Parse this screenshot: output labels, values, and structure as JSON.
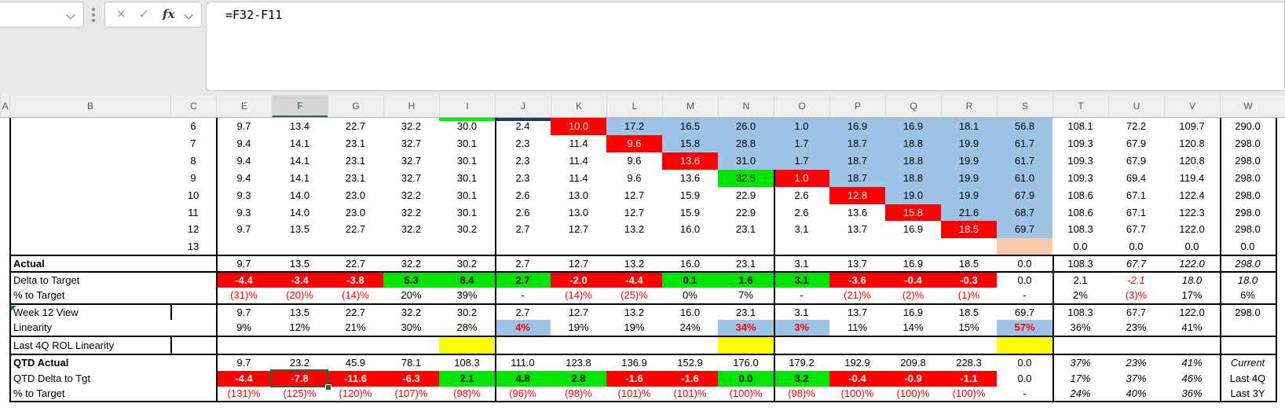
{
  "formula_bar": {
    "name_box_value": "",
    "formula": "=F32-F11",
    "buttons": {
      "cancel": "×",
      "confirm": "✓",
      "insert_function": "fx"
    }
  },
  "columns": {
    "letters": [
      "A",
      "B",
      "C",
      "E",
      "F",
      "G",
      "H",
      "I",
      "J",
      "K",
      "L",
      "M",
      "N",
      "O",
      "P",
      "Q",
      "R",
      "S",
      "T",
      "U",
      "V",
      "W"
    ],
    "selected": "F"
  },
  "palette": {
    "red": "#FE0000",
    "green": "#00E402",
    "blue": "#9DC3E6",
    "yellow": "#FFFF00",
    "peach": "#F8CBAD",
    "strip_green": "#00F300",
    "strip_navy": "#1F3864",
    "selection_border": "#1A6B42",
    "negative_text": "#FE0000"
  },
  "strips": [
    {
      "col": "I",
      "color": "strip_green"
    },
    {
      "col": "J",
      "color": "strip_navy"
    }
  ],
  "selection": {
    "column": "F",
    "row_id": "qtd_delta"
  },
  "rows": [
    {
      "id": "wk6",
      "week": "6",
      "cells": [
        "9.7",
        "13.4",
        "22.7",
        "32.2",
        "30.0",
        "2.4",
        [
          "10.0",
          "red",
          "w"
        ],
        [
          "17.2",
          "blue"
        ],
        [
          "16.5",
          "blue"
        ],
        [
          "26.0",
          "blue"
        ],
        [
          "1.0",
          "blue"
        ],
        [
          "16.9",
          "blue"
        ],
        [
          "16.9",
          "blue"
        ],
        [
          "18.1",
          "blue"
        ],
        [
          "56.8",
          "blue"
        ],
        "108.1",
        "72.2",
        "109.7",
        "290.0"
      ]
    },
    {
      "id": "wk7",
      "week": "7",
      "cells": [
        "9.4",
        "14.1",
        "23.1",
        "32.7",
        "30.1",
        "2.3",
        "11.4",
        [
          "9.6",
          "red",
          "w"
        ],
        [
          "15.8",
          "blue"
        ],
        [
          "28.8",
          "blue"
        ],
        [
          "1.7",
          "blue"
        ],
        [
          "18.7",
          "blue"
        ],
        [
          "18.8",
          "blue"
        ],
        [
          "19.9",
          "blue"
        ],
        [
          "61.7",
          "blue"
        ],
        "109.3",
        "67.9",
        "120.8",
        "298.0"
      ]
    },
    {
      "id": "wk8",
      "week": "8",
      "cells": [
        "9.4",
        "14.1",
        "23.1",
        "32.7",
        "30.1",
        "2.3",
        "11.4",
        "9.6",
        [
          "13.6",
          "red",
          "w"
        ],
        [
          "31.0",
          "blue"
        ],
        [
          "1.7",
          "blue"
        ],
        [
          "18.7",
          "blue"
        ],
        [
          "18.8",
          "blue"
        ],
        [
          "19.9",
          "blue"
        ],
        [
          "61.7",
          "blue"
        ],
        "109.3",
        "67.9",
        "120.8",
        "298.0"
      ]
    },
    {
      "id": "wk9",
      "week": "9",
      "cells": [
        "9.4",
        "14.1",
        "23.1",
        "32.7",
        "30.1",
        "2.3",
        "11.4",
        "9.6",
        "13.6",
        [
          "32.5",
          "green"
        ],
        [
          "1.0",
          "red",
          "w"
        ],
        [
          "18.7",
          "blue"
        ],
        [
          "18.8",
          "blue"
        ],
        [
          "19.9",
          "blue"
        ],
        [
          "61.0",
          "blue"
        ],
        "109.3",
        "69.4",
        "119.4",
        "298.0"
      ]
    },
    {
      "id": "wk10",
      "week": "10",
      "cells": [
        "9.3",
        "14.0",
        "23.0",
        "32.2",
        "30.1",
        "2.6",
        "13.0",
        "12.7",
        "15.9",
        "22.9",
        "2.6",
        [
          "12.8",
          "red",
          "w"
        ],
        [
          "19.0",
          "blue"
        ],
        [
          "19.9",
          "blue"
        ],
        [
          "67.9",
          "blue"
        ],
        "108.6",
        "67.1",
        "122.4",
        "298.0"
      ]
    },
    {
      "id": "wk11",
      "week": "11",
      "cells": [
        "9.3",
        "14.0",
        "23.0",
        "32.2",
        "30.1",
        "2.6",
        "13.0",
        "12.7",
        "15.9",
        "22.9",
        "2.6",
        "13.6",
        [
          "15.8",
          "red",
          "w"
        ],
        [
          "21.6",
          "blue"
        ],
        [
          "68.7",
          "blue"
        ],
        "108.6",
        "67.1",
        "122.3",
        "298.0"
      ]
    },
    {
      "id": "wk12",
      "week": "12",
      "cells": [
        "9.7",
        "13.5",
        "22.7",
        "32.2",
        "30.2",
        "2.7",
        "12.7",
        "13.2",
        "16.0",
        "23.1",
        "3.1",
        "13.7",
        "16.9",
        [
          "18.5",
          "red",
          "w"
        ],
        [
          "69.7",
          "blue"
        ],
        "108.3",
        "67.7",
        "122.0",
        "298.0"
      ]
    },
    {
      "id": "wk13",
      "week": "13",
      "cells": [
        null,
        null,
        null,
        null,
        null,
        null,
        null,
        null,
        null,
        null,
        null,
        null,
        null,
        null,
        [
          "",
          "peach"
        ],
        "0.0",
        "0.0",
        "0.0",
        "0.0"
      ]
    },
    {
      "id": "actual",
      "label": "Actual",
      "label_bold": true,
      "cells": [
        "9.7",
        "13.5",
        "22.7",
        "32.2",
        "30.2",
        "2.7",
        "12.7",
        "13.2",
        "16.0",
        "23.1",
        "3.1",
        "13.7",
        "16.9",
        "18.5",
        "0.0",
        "108.3",
        [
          "67.7",
          "",
          "i"
        ],
        [
          "122.0",
          "",
          "i"
        ],
        [
          "298.0",
          "",
          "i"
        ]
      ]
    },
    {
      "id": "delta_to_target",
      "label": "Delta to Target",
      "cells": [
        [
          "-4.4",
          "red",
          "wb"
        ],
        [
          "-3.4",
          "red",
          "wb"
        ],
        [
          "-3.8",
          "red",
          "wb"
        ],
        [
          "5.3",
          "green",
          "b"
        ],
        [
          "8.4",
          "green",
          "b"
        ],
        [
          "2.7",
          "green",
          "b"
        ],
        [
          "-2.0",
          "red",
          "wb"
        ],
        [
          "-4.4",
          "red",
          "wb"
        ],
        [
          "0.1",
          "green",
          "b"
        ],
        [
          "1.6",
          "green",
          "b"
        ],
        [
          "3.1",
          "green",
          "b"
        ],
        [
          "-3.6",
          "red",
          "wb"
        ],
        [
          "-0.4",
          "red",
          "wb"
        ],
        [
          "-0.3",
          "red",
          "wb"
        ],
        "0.0",
        "2.1",
        [
          "-2.1",
          "",
          "ri"
        ],
        [
          "18.0",
          "",
          "i"
        ],
        [
          "18.0",
          "",
          "i"
        ]
      ]
    },
    {
      "id": "pct_to_target",
      "label": "% to Target",
      "cells": [
        [
          "(31)%",
          "",
          "r"
        ],
        [
          "(20)%",
          "",
          "r"
        ],
        [
          "(14)%",
          "",
          "r"
        ],
        "20%",
        "39%",
        "-",
        [
          "(14)%",
          "",
          "r"
        ],
        [
          "(25)%",
          "",
          "r"
        ],
        "0%",
        "7%",
        "-",
        [
          "(21)%",
          "",
          "r"
        ],
        [
          "(2)%",
          "",
          "r"
        ],
        [
          "(1)%",
          "",
          "r"
        ],
        "-",
        "2%",
        [
          "(3)%",
          "",
          "r"
        ],
        "17%",
        "6%"
      ]
    },
    {
      "id": "week12_view",
      "label": "Week 12 View",
      "note_indicator": true,
      "cells": [
        "9.7",
        "13.5",
        "22.7",
        "32.2",
        "30.2",
        "2.7",
        "12.7",
        "13.2",
        "16.0",
        "23.1",
        "3.1",
        "13.7",
        "16.9",
        "18.5",
        "69.7",
        "108.3",
        "67.7",
        "122.0",
        "298.0"
      ]
    },
    {
      "id": "linearity",
      "label": "Linearity",
      "cells": [
        "9%",
        "12%",
        "21%",
        "30%",
        "28%",
        [
          "4%",
          "blue",
          "rb"
        ],
        "19%",
        "19%",
        "24%",
        [
          "34%",
          "blue",
          "rb"
        ],
        [
          "3%",
          "blue",
          "rb"
        ],
        "11%",
        "14%",
        "15%",
        [
          "57%",
          "blue",
          "rb"
        ],
        "36%",
        "23%",
        "41%",
        null
      ]
    },
    {
      "id": "last4q_rol",
      "label": "Last 4Q ROL Linearity",
      "cells": [
        null,
        null,
        null,
        null,
        [
          "",
          "yellow"
        ],
        null,
        null,
        null,
        null,
        [
          "",
          "yellow"
        ],
        null,
        null,
        null,
        null,
        [
          "",
          "yellow"
        ],
        null,
        null,
        null,
        null
      ]
    },
    {
      "id": "qtd_actual",
      "label": "QTD Actual",
      "label_bold": true,
      "cells": [
        "9.7",
        "23.2",
        "45.9",
        "78.1",
        "108.3",
        "111.0",
        "123.8",
        "136.9",
        "152.9",
        "176.0",
        "179.2",
        "192.9",
        "209.8",
        "228.3",
        "0.0",
        [
          "37%",
          "",
          "i"
        ],
        [
          "23%",
          "",
          "i"
        ],
        [
          "41%",
          "",
          "i"
        ],
        [
          "Current",
          "",
          "i"
        ]
      ]
    },
    {
      "id": "qtd_delta",
      "label": "QTD Delta to Tgt",
      "cells": [
        [
          "-4.4",
          "red",
          "wb"
        ],
        [
          "-7.8",
          "red",
          "wb"
        ],
        [
          "-11.6",
          "red",
          "wb"
        ],
        [
          "-6.3",
          "red",
          "wb"
        ],
        [
          "2.1",
          "green",
          "b"
        ],
        [
          "4.8",
          "green",
          "b"
        ],
        [
          "2.8",
          "green",
          "b"
        ],
        [
          "-1.6",
          "red",
          "wb"
        ],
        [
          "-1.6",
          "red",
          "wb"
        ],
        [
          "0.0",
          "green",
          "b"
        ],
        [
          "3.2",
          "green",
          "b"
        ],
        [
          "-0.4",
          "red",
          "wb"
        ],
        [
          "-0.9",
          "red",
          "wb"
        ],
        [
          "-1.1",
          "red",
          "wb"
        ],
        "0.0",
        [
          "17%",
          "",
          "i"
        ],
        [
          "37%",
          "",
          "i"
        ],
        [
          "46%",
          "",
          "i"
        ],
        "Last 4Q"
      ]
    },
    {
      "id": "qtd_pct_to_target",
      "label": "% to Target",
      "cells": [
        [
          "(131)%",
          "",
          "r"
        ],
        [
          "(125)%",
          "",
          "r"
        ],
        [
          "(120)%",
          "",
          "r"
        ],
        [
          "(107)%",
          "",
          "r"
        ],
        [
          "(98)%",
          "",
          "r"
        ],
        [
          "(96)%",
          "",
          "r"
        ],
        [
          "(98)%",
          "",
          "r"
        ],
        [
          "(101)%",
          "",
          "r"
        ],
        [
          "(101)%",
          "",
          "r"
        ],
        [
          "(100)%",
          "",
          "r"
        ],
        [
          "(98)%",
          "",
          "r"
        ],
        [
          "(100)%",
          "",
          "r"
        ],
        [
          "(100)%",
          "",
          "r"
        ],
        [
          "(100)%",
          "",
          "r"
        ],
        "-",
        [
          "24%",
          "",
          "i"
        ],
        [
          "40%",
          "",
          "i"
        ],
        [
          "36%",
          "",
          "i"
        ],
        "Last 3Y"
      ]
    }
  ]
}
